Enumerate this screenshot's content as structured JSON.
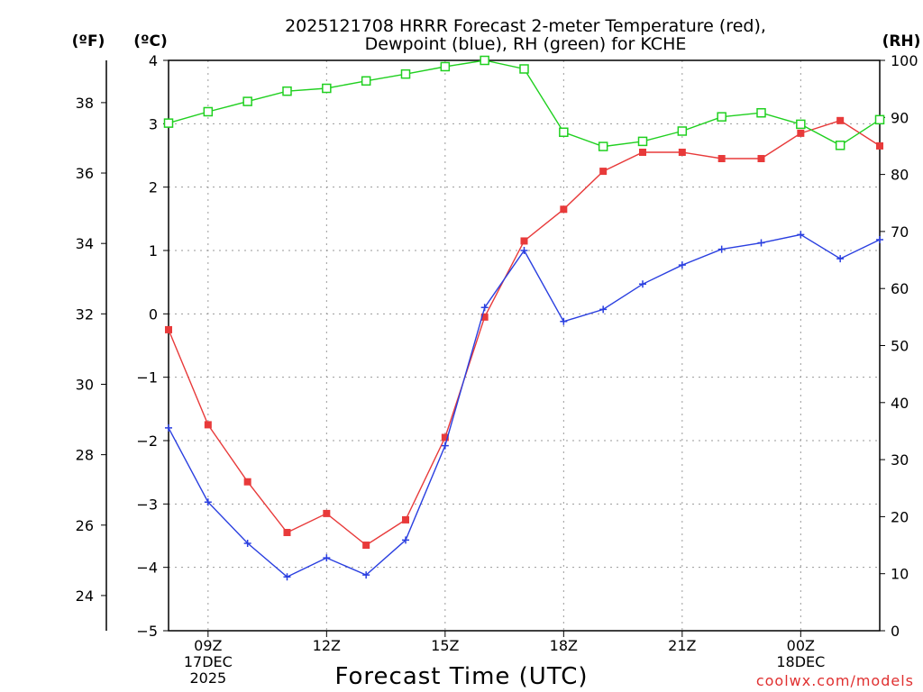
{
  "chart_data": {
    "type": "line",
    "title_line1": "2025121708 HRRR Forecast 2-meter Temperature (red),",
    "title_line2": "Dewpoint (blue), RH (green) for KCHE",
    "xlabel": "Forecast Time (UTC)",
    "units": {
      "fahrenheit": "(ºF)",
      "celsius": "(ºC)",
      "rh": "(RH)"
    },
    "x_hours": [
      8,
      9,
      10,
      11,
      12,
      13,
      14,
      15,
      16,
      17,
      18,
      19,
      20,
      21,
      22,
      23,
      24,
      25,
      26
    ],
    "xlim": [
      8,
      26
    ],
    "x_ticks": [
      {
        "hour": 9,
        "lines": [
          "09Z",
          "17DEC",
          "2025"
        ]
      },
      {
        "hour": 12,
        "lines": [
          "12Z"
        ]
      },
      {
        "hour": 15,
        "lines": [
          "15Z"
        ]
      },
      {
        "hour": 18,
        "lines": [
          "18Z"
        ]
      },
      {
        "hour": 21,
        "lines": [
          "21Z"
        ]
      },
      {
        "hour": 24,
        "lines": [
          "00Z",
          "18DEC"
        ]
      }
    ],
    "celsius_axis": {
      "ylim": [
        -5,
        4
      ],
      "ticks": [
        4,
        3,
        2,
        1,
        0,
        -1,
        -2,
        -3,
        -4,
        -5
      ],
      "tick_labels": [
        "4",
        "3",
        "2",
        "1",
        "0",
        "−1",
        "−2",
        "−3",
        "−4",
        "−5"
      ]
    },
    "fahrenheit_axis": {
      "ticks": [
        38,
        36,
        34,
        32,
        30,
        28,
        26,
        24
      ],
      "tick_labels": [
        "38",
        "36",
        "34",
        "32",
        "30",
        "28",
        "26",
        "24"
      ]
    },
    "rh_axis": {
      "ylim": [
        0,
        100
      ],
      "ticks": [
        100,
        90,
        80,
        70,
        60,
        50,
        40,
        30,
        20,
        10,
        0
      ],
      "tick_labels": [
        "100",
        "90",
        "80",
        "70",
        "60",
        "50",
        "40",
        "30",
        "20",
        "10",
        "0"
      ]
    },
    "series": [
      {
        "name": "Temperature",
        "axis": "celsius",
        "color": "#e83a3a",
        "marker": "filled-square",
        "values": [
          -0.25,
          -1.75,
          -2.65,
          -3.45,
          -3.15,
          -3.65,
          -3.25,
          -1.95,
          -0.05,
          1.15,
          1.65,
          2.25,
          2.55,
          2.55,
          2.45,
          2.45,
          2.85,
          3.05,
          2.65
        ]
      },
      {
        "name": "Dewpoint",
        "axis": "celsius",
        "color": "#2a3fe0",
        "marker": "plus",
        "values": [
          -1.8,
          -2.97,
          -3.62,
          -4.15,
          -3.85,
          -4.12,
          -3.57,
          -2.08,
          0.1,
          1.0,
          -0.12,
          0.07,
          0.47,
          0.77,
          1.02,
          1.12,
          1.25,
          0.87,
          1.17
        ]
      },
      {
        "name": "RH",
        "axis": "rh",
        "color": "#20d020",
        "marker": "open-square",
        "values": [
          89,
          91,
          92.8,
          94.6,
          95.1,
          96.4,
          97.6,
          98.9,
          100,
          98.5,
          87.4,
          84.9,
          85.8,
          87.6,
          90.1,
          90.8,
          88.8,
          85.1,
          89.6
        ]
      }
    ]
  },
  "credit": "coolwx.com/models"
}
